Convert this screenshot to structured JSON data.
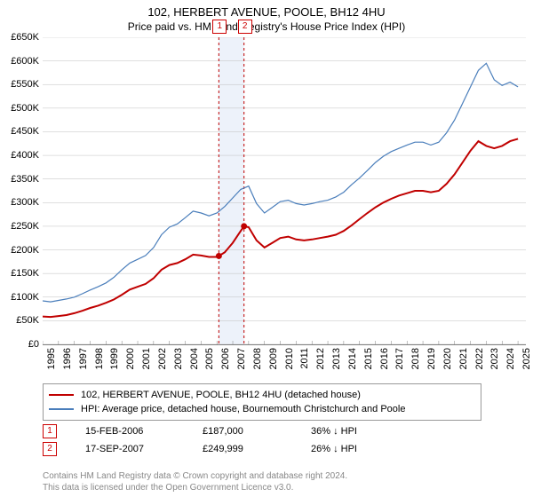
{
  "title_line1": "102, HERBERT AVENUE, POOLE, BH12 4HU",
  "title_line2": "Price paid vs. HM Land Registry's House Price Index (HPI)",
  "chart": {
    "type": "line",
    "y_axis": {
      "min": 0,
      "max": 650000,
      "ticks": [
        0,
        50000,
        100000,
        150000,
        200000,
        250000,
        300000,
        350000,
        400000,
        450000,
        500000,
        550000,
        600000,
        650000
      ],
      "tick_labels": [
        "£0",
        "£50K",
        "£100K",
        "£150K",
        "£200K",
        "£250K",
        "£300K",
        "£350K",
        "£400K",
        "£450K",
        "£500K",
        "£550K",
        "£600K",
        "£650K"
      ]
    },
    "x_axis": {
      "min": 1995,
      "max": 2025.5,
      "tick_years": [
        1995,
        1996,
        1997,
        1998,
        1999,
        2000,
        2001,
        2002,
        2003,
        2004,
        2005,
        2006,
        2007,
        2008,
        2009,
        2010,
        2011,
        2012,
        2013,
        2014,
        2015,
        2016,
        2017,
        2018,
        2019,
        2020,
        2021,
        2022,
        2023,
        2024,
        2025
      ]
    },
    "grid_color": "#bfbfbf",
    "band": {
      "from_year": 2006.12,
      "to_year": 2007.71,
      "fill": "#edf2fa"
    },
    "sale_lines": [
      {
        "badge": "1",
        "year": 2006.12
      },
      {
        "badge": "2",
        "year": 2007.71
      }
    ],
    "series": [
      {
        "name": "price_paid",
        "color": "#c00000",
        "width": 2,
        "label": "102, HERBERT AVENUE, POOLE, BH12 4HU (detached house)",
        "points": [
          [
            1995.0,
            59000
          ],
          [
            1995.5,
            58000
          ],
          [
            1996.0,
            60000
          ],
          [
            1996.5,
            62000
          ],
          [
            1997.0,
            66000
          ],
          [
            1997.5,
            71000
          ],
          [
            1998.0,
            77000
          ],
          [
            1998.5,
            82000
          ],
          [
            1999.0,
            88000
          ],
          [
            1999.5,
            95000
          ],
          [
            2000.0,
            105000
          ],
          [
            2000.5,
            116000
          ],
          [
            2001.0,
            122000
          ],
          [
            2001.5,
            128000
          ],
          [
            2002.0,
            140000
          ],
          [
            2002.5,
            158000
          ],
          [
            2003.0,
            168000
          ],
          [
            2003.5,
            172000
          ],
          [
            2004.0,
            180000
          ],
          [
            2004.5,
            190000
          ],
          [
            2005.0,
            188000
          ],
          [
            2005.5,
            185000
          ],
          [
            2006.0,
            185000
          ],
          [
            2006.12,
            187000
          ],
          [
            2006.5,
            195000
          ],
          [
            2007.0,
            215000
          ],
          [
            2007.5,
            240000
          ],
          [
            2007.71,
            249999
          ],
          [
            2008.0,
            248000
          ],
          [
            2008.5,
            220000
          ],
          [
            2009.0,
            205000
          ],
          [
            2009.5,
            215000
          ],
          [
            2010.0,
            225000
          ],
          [
            2010.5,
            228000
          ],
          [
            2011.0,
            222000
          ],
          [
            2011.5,
            220000
          ],
          [
            2012.0,
            222000
          ],
          [
            2012.5,
            225000
          ],
          [
            2013.0,
            228000
          ],
          [
            2013.5,
            232000
          ],
          [
            2014.0,
            240000
          ],
          [
            2014.5,
            252000
          ],
          [
            2015.0,
            265000
          ],
          [
            2015.5,
            278000
          ],
          [
            2016.0,
            290000
          ],
          [
            2016.5,
            300000
          ],
          [
            2017.0,
            308000
          ],
          [
            2017.5,
            315000
          ],
          [
            2018.0,
            320000
          ],
          [
            2018.5,
            325000
          ],
          [
            2019.0,
            325000
          ],
          [
            2019.5,
            322000
          ],
          [
            2020.0,
            325000
          ],
          [
            2020.5,
            340000
          ],
          [
            2021.0,
            360000
          ],
          [
            2021.5,
            385000
          ],
          [
            2022.0,
            410000
          ],
          [
            2022.5,
            430000
          ],
          [
            2023.0,
            420000
          ],
          [
            2023.5,
            415000
          ],
          [
            2024.0,
            420000
          ],
          [
            2024.5,
            430000
          ],
          [
            2025.0,
            435000
          ]
        ],
        "markers": [
          [
            2006.12,
            187000
          ],
          [
            2007.71,
            249999
          ]
        ]
      },
      {
        "name": "hpi",
        "color": "#4a7ebb",
        "width": 1.2,
        "label": "HPI: Average price, detached house, Bournemouth Christchurch and Poole",
        "points": [
          [
            1995.0,
            92000
          ],
          [
            1995.5,
            90000
          ],
          [
            1996.0,
            93000
          ],
          [
            1996.5,
            96000
          ],
          [
            1997.0,
            100000
          ],
          [
            1997.5,
            107000
          ],
          [
            1998.0,
            115000
          ],
          [
            1998.5,
            122000
          ],
          [
            1999.0,
            130000
          ],
          [
            1999.5,
            142000
          ],
          [
            2000.0,
            158000
          ],
          [
            2000.5,
            172000
          ],
          [
            2001.0,
            180000
          ],
          [
            2001.5,
            188000
          ],
          [
            2002.0,
            205000
          ],
          [
            2002.5,
            232000
          ],
          [
            2003.0,
            248000
          ],
          [
            2003.5,
            255000
          ],
          [
            2004.0,
            268000
          ],
          [
            2004.5,
            282000
          ],
          [
            2005.0,
            278000
          ],
          [
            2005.5,
            272000
          ],
          [
            2006.0,
            278000
          ],
          [
            2006.5,
            292000
          ],
          [
            2007.0,
            310000
          ],
          [
            2007.5,
            328000
          ],
          [
            2008.0,
            335000
          ],
          [
            2008.5,
            298000
          ],
          [
            2009.0,
            278000
          ],
          [
            2009.5,
            290000
          ],
          [
            2010.0,
            302000
          ],
          [
            2010.5,
            305000
          ],
          [
            2011.0,
            298000
          ],
          [
            2011.5,
            295000
          ],
          [
            2012.0,
            298000
          ],
          [
            2012.5,
            302000
          ],
          [
            2013.0,
            305000
          ],
          [
            2013.5,
            312000
          ],
          [
            2014.0,
            322000
          ],
          [
            2014.5,
            338000
          ],
          [
            2015.0,
            352000
          ],
          [
            2015.5,
            368000
          ],
          [
            2016.0,
            385000
          ],
          [
            2016.5,
            398000
          ],
          [
            2017.0,
            408000
          ],
          [
            2017.5,
            415000
          ],
          [
            2018.0,
            422000
          ],
          [
            2018.5,
            428000
          ],
          [
            2019.0,
            428000
          ],
          [
            2019.5,
            422000
          ],
          [
            2020.0,
            428000
          ],
          [
            2020.5,
            448000
          ],
          [
            2021.0,
            475000
          ],
          [
            2021.5,
            510000
          ],
          [
            2022.0,
            545000
          ],
          [
            2022.5,
            580000
          ],
          [
            2023.0,
            595000
          ],
          [
            2023.5,
            560000
          ],
          [
            2024.0,
            548000
          ],
          [
            2024.5,
            555000
          ],
          [
            2025.0,
            545000
          ]
        ]
      }
    ]
  },
  "legend": {
    "rows": [
      {
        "color": "#c00000",
        "label": "102, HERBERT AVENUE, POOLE, BH12 4HU (detached house)"
      },
      {
        "color": "#4a7ebb",
        "label": "HPI: Average price, detached house, Bournemouth Christchurch and Poole"
      }
    ]
  },
  "sales": [
    {
      "badge": "1",
      "date": "15-FEB-2006",
      "price": "£187,000",
      "note": "36% ↓ HPI"
    },
    {
      "badge": "2",
      "date": "17-SEP-2007",
      "price": "£249,999",
      "note": "26% ↓ HPI"
    }
  ],
  "footer_line1": "Contains HM Land Registry data © Crown copyright and database right 2024.",
  "footer_line2": "This data is licensed under the Open Government Licence v3.0."
}
